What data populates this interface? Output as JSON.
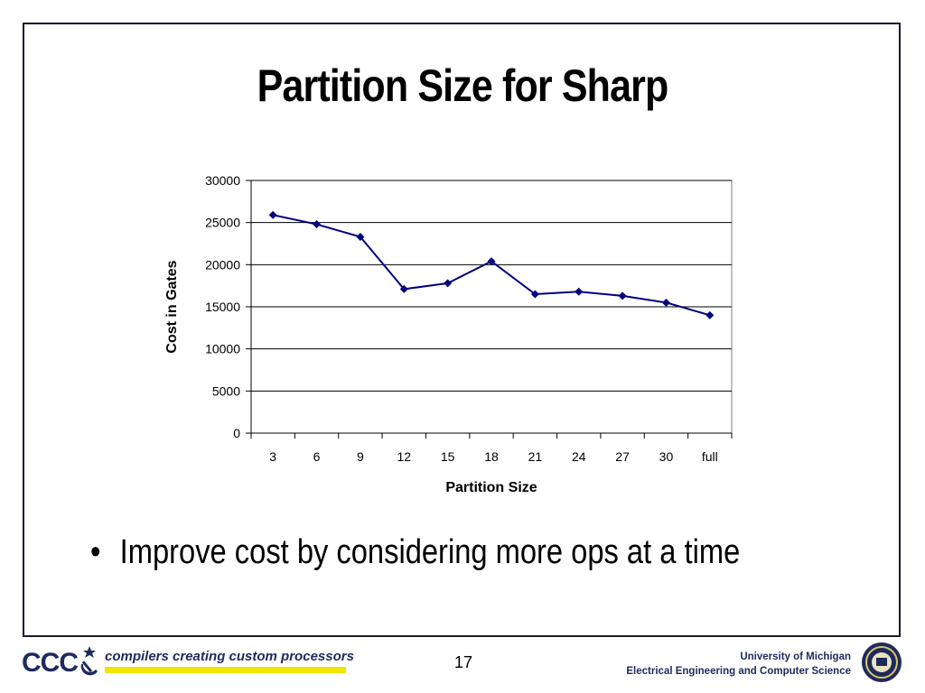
{
  "slide": {
    "title": "Partition Size for Sharp",
    "bullet": "Improve cost by considering more ops at a time",
    "page_number": "17"
  },
  "footer": {
    "logo_text": "CCC",
    "tagline": "compilers creating custom processors",
    "university": "University of Michigan",
    "department": "Electrical Engineering and Computer Science"
  },
  "colors": {
    "series": "#000080",
    "tagline_bar": "#f2e600",
    "footer_text": "#1f2a5c"
  },
  "icons": {
    "ccc_mark": "hammer-sickle-star-icon",
    "seal": "university-seal-icon"
  },
  "chart_data": {
    "type": "line",
    "categories": [
      "3",
      "6",
      "9",
      "12",
      "15",
      "18",
      "21",
      "24",
      "27",
      "30",
      "full"
    ],
    "series": [
      {
        "values": [
          25900,
          24800,
          23300,
          17100,
          17800,
          20400,
          16500,
          16800,
          16300,
          15500,
          14000
        ]
      }
    ],
    "xlabel": "Partition Size",
    "ylabel": "Cost in Gates",
    "ylim": [
      0,
      30000
    ],
    "yticks": [
      0,
      5000,
      10000,
      15000,
      20000,
      25000,
      30000
    ],
    "grid": "horizontal",
    "legend": "none",
    "marker": "diamond"
  }
}
